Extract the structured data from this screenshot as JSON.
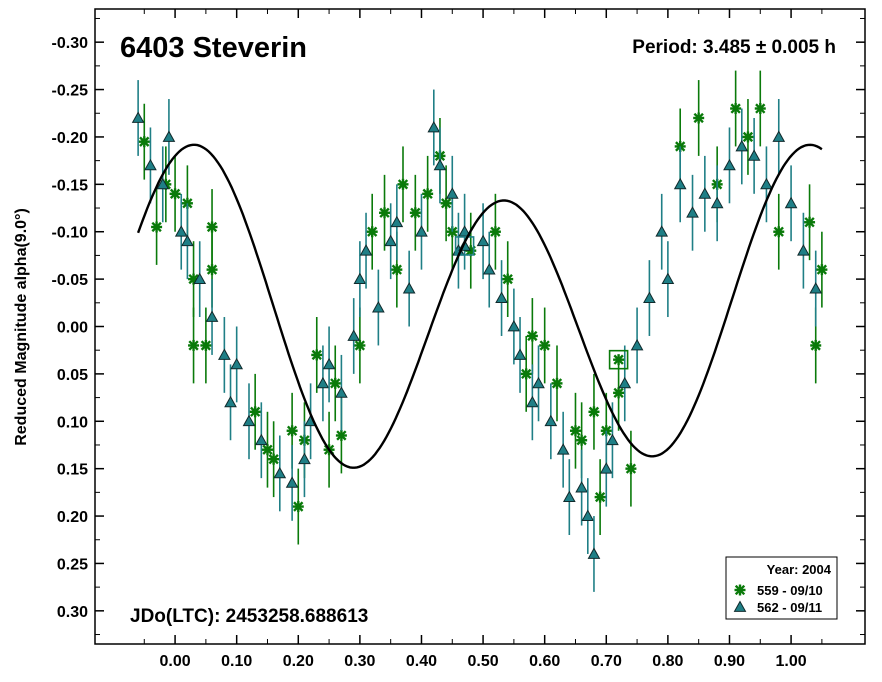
{
  "chart_data": {
    "type": "scatter",
    "title": "6403 Steverin",
    "period_label": "Period: 3.485 ± 0.005 h",
    "jd_label": "JDo(LTC): 2453258.688613",
    "ylabel": "Reduced Magnitude alpha(9.0°)",
    "xlabel": "",
    "xlim": [
      -0.13,
      1.12
    ],
    "ylim": [
      0.335,
      -0.335
    ],
    "y_inverted": true,
    "grid": false,
    "x_ticks": [
      "0.00",
      "0.10",
      "0.20",
      "0.30",
      "0.40",
      "0.50",
      "0.60",
      "0.70",
      "0.80",
      "0.90",
      "1.00"
    ],
    "y_ticks": [
      "-0.30",
      "-0.25",
      "-0.20",
      "-0.15",
      "-0.10",
      "-0.05",
      "0.00",
      "0.05",
      "0.10",
      "0.15",
      "0.20",
      "0.25",
      "0.30"
    ],
    "legend": {
      "position": "bottom-right",
      "title": "Year: 2004",
      "entries": [
        {
          "label": "559 - 09/10",
          "marker": "asterisk",
          "color": "#0a7a0a"
        },
        {
          "label": "562 - 09/11",
          "marker": "triangle",
          "color": "#1f7f86"
        }
      ]
    },
    "colors": {
      "series1": "#0a7a0a",
      "series2": "#1f7f86",
      "fit": "#000000"
    },
    "fourier_fit": {
      "mean": -0.01,
      "a1": -0.03,
      "b1": 0.0,
      "a2": -0.14,
      "b2": -0.06
    },
    "series": [
      {
        "name": "559 - 09/10",
        "marker": "asterisk",
        "points": [
          [
            -0.05,
            -0.195,
            0.04
          ],
          [
            -0.03,
            -0.105,
            0.04
          ],
          [
            -0.015,
            -0.15,
            0.04
          ],
          [
            0.0,
            -0.14,
            0.04
          ],
          [
            0.02,
            -0.13,
            0.04
          ],
          [
            0.03,
            -0.05,
            0.04
          ],
          [
            0.03,
            0.02,
            0.04
          ],
          [
            0.05,
            0.02,
            0.04
          ],
          [
            0.06,
            -0.105,
            0.04
          ],
          [
            0.06,
            -0.06,
            0.04
          ],
          [
            0.13,
            0.09,
            0.04
          ],
          [
            0.15,
            0.13,
            0.04
          ],
          [
            0.16,
            0.14,
            0.04
          ],
          [
            0.19,
            0.11,
            0.04
          ],
          [
            0.2,
            0.19,
            0.04
          ],
          [
            0.21,
            0.12,
            0.04
          ],
          [
            0.23,
            0.03,
            0.04
          ],
          [
            0.25,
            0.13,
            0.04
          ],
          [
            0.26,
            0.06,
            0.04
          ],
          [
            0.27,
            0.115,
            0.04
          ],
          [
            0.3,
            0.02,
            0.04
          ],
          [
            0.32,
            -0.1,
            0.04
          ],
          [
            0.34,
            -0.12,
            0.04
          ],
          [
            0.36,
            -0.06,
            0.04
          ],
          [
            0.37,
            -0.15,
            0.04
          ],
          [
            0.39,
            -0.12,
            0.04
          ],
          [
            0.41,
            -0.14,
            0.04
          ],
          [
            0.43,
            -0.18,
            0.04
          ],
          [
            0.44,
            -0.13,
            0.04
          ],
          [
            0.45,
            -0.1,
            0.04
          ],
          [
            0.48,
            -0.08,
            0.04
          ],
          [
            0.52,
            -0.1,
            0.04
          ],
          [
            0.54,
            -0.05,
            0.04
          ],
          [
            0.57,
            0.05,
            0.04
          ],
          [
            0.58,
            0.01,
            0.04
          ],
          [
            0.6,
            0.02,
            0.04
          ],
          [
            0.62,
            0.06,
            0.04
          ],
          [
            0.65,
            0.11,
            0.04
          ],
          [
            0.66,
            0.12,
            0.04
          ],
          [
            0.68,
            0.09,
            0.04
          ],
          [
            0.69,
            0.18,
            0.04
          ],
          [
            0.7,
            0.11,
            0.04
          ],
          [
            0.72,
            0.07,
            0.04
          ],
          [
            0.74,
            0.15,
            0.04
          ],
          [
            0.82,
            -0.19,
            0.04
          ],
          [
            0.85,
            -0.22,
            0.04
          ],
          [
            0.88,
            -0.15,
            0.04
          ],
          [
            0.91,
            -0.23,
            0.04
          ],
          [
            0.93,
            -0.2,
            0.04
          ],
          [
            0.95,
            -0.23,
            0.04
          ],
          [
            0.98,
            -0.1,
            0.04
          ],
          [
            1.03,
            -0.11,
            0.04
          ],
          [
            1.04,
            0.02,
            0.04
          ],
          [
            1.05,
            -0.06,
            0.04
          ]
        ]
      },
      {
        "name": "562 - 09/11",
        "marker": "triangle",
        "points": [
          [
            -0.06,
            -0.22,
            0.04
          ],
          [
            -0.04,
            -0.17,
            0.04
          ],
          [
            -0.02,
            -0.15,
            0.04
          ],
          [
            -0.01,
            -0.2,
            0.04
          ],
          [
            0.01,
            -0.1,
            0.04
          ],
          [
            0.02,
            -0.09,
            0.04
          ],
          [
            0.04,
            -0.05,
            0.04
          ],
          [
            0.06,
            -0.01,
            0.04
          ],
          [
            0.08,
            0.03,
            0.04
          ],
          [
            0.09,
            0.08,
            0.04
          ],
          [
            0.1,
            0.04,
            0.04
          ],
          [
            0.12,
            0.1,
            0.04
          ],
          [
            0.14,
            0.12,
            0.04
          ],
          [
            0.17,
            0.155,
            0.04
          ],
          [
            0.19,
            0.165,
            0.04
          ],
          [
            0.21,
            0.14,
            0.04
          ],
          [
            0.22,
            0.1,
            0.04
          ],
          [
            0.24,
            0.06,
            0.04
          ],
          [
            0.25,
            0.04,
            0.04
          ],
          [
            0.27,
            0.07,
            0.04
          ],
          [
            0.29,
            0.01,
            0.04
          ],
          [
            0.3,
            -0.05,
            0.04
          ],
          [
            0.31,
            -0.08,
            0.04
          ],
          [
            0.33,
            -0.02,
            0.04
          ],
          [
            0.35,
            -0.09,
            0.04
          ],
          [
            0.36,
            -0.11,
            0.04
          ],
          [
            0.38,
            -0.04,
            0.04
          ],
          [
            0.4,
            -0.1,
            0.04
          ],
          [
            0.42,
            -0.21,
            0.04
          ],
          [
            0.43,
            -0.17,
            0.04
          ],
          [
            0.45,
            -0.14,
            0.04
          ],
          [
            0.46,
            -0.08,
            0.04
          ],
          [
            0.47,
            -0.1,
            0.04
          ],
          [
            0.5,
            -0.09,
            0.04
          ],
          [
            0.51,
            -0.06,
            0.04
          ],
          [
            0.53,
            -0.03,
            0.04
          ],
          [
            0.55,
            0.0,
            0.04
          ],
          [
            0.56,
            0.03,
            0.04
          ],
          [
            0.58,
            0.08,
            0.04
          ],
          [
            0.59,
            0.06,
            0.04
          ],
          [
            0.61,
            0.1,
            0.04
          ],
          [
            0.63,
            0.13,
            0.04
          ],
          [
            0.64,
            0.18,
            0.04
          ],
          [
            0.66,
            0.17,
            0.04
          ],
          [
            0.67,
            0.2,
            0.04
          ],
          [
            0.68,
            0.24,
            0.04
          ],
          [
            0.7,
            0.15,
            0.04
          ],
          [
            0.71,
            0.12,
            0.04
          ],
          [
            0.73,
            0.06,
            0.04
          ],
          [
            0.75,
            0.02,
            0.04
          ],
          [
            0.77,
            -0.03,
            0.04
          ],
          [
            0.79,
            -0.1,
            0.04
          ],
          [
            0.8,
            -0.05,
            0.04
          ],
          [
            0.82,
            -0.15,
            0.04
          ],
          [
            0.84,
            -0.12,
            0.04
          ],
          [
            0.86,
            -0.14,
            0.04
          ],
          [
            0.88,
            -0.13,
            0.04
          ],
          [
            0.9,
            -0.17,
            0.04
          ],
          [
            0.92,
            -0.19,
            0.04
          ],
          [
            0.94,
            -0.18,
            0.04
          ],
          [
            0.96,
            -0.15,
            0.04
          ],
          [
            0.98,
            -0.2,
            0.04
          ],
          [
            1.0,
            -0.13,
            0.04
          ],
          [
            1.02,
            -0.08,
            0.04
          ],
          [
            1.04,
            -0.04,
            0.04
          ]
        ]
      }
    ],
    "highlighted_points": [
      {
        "series": "559 - 09/10",
        "x": 0.72,
        "y": 0.035
      },
      {
        "series": "562 - 09/11",
        "x": 0.47,
        "y": -0.085
      }
    ]
  }
}
